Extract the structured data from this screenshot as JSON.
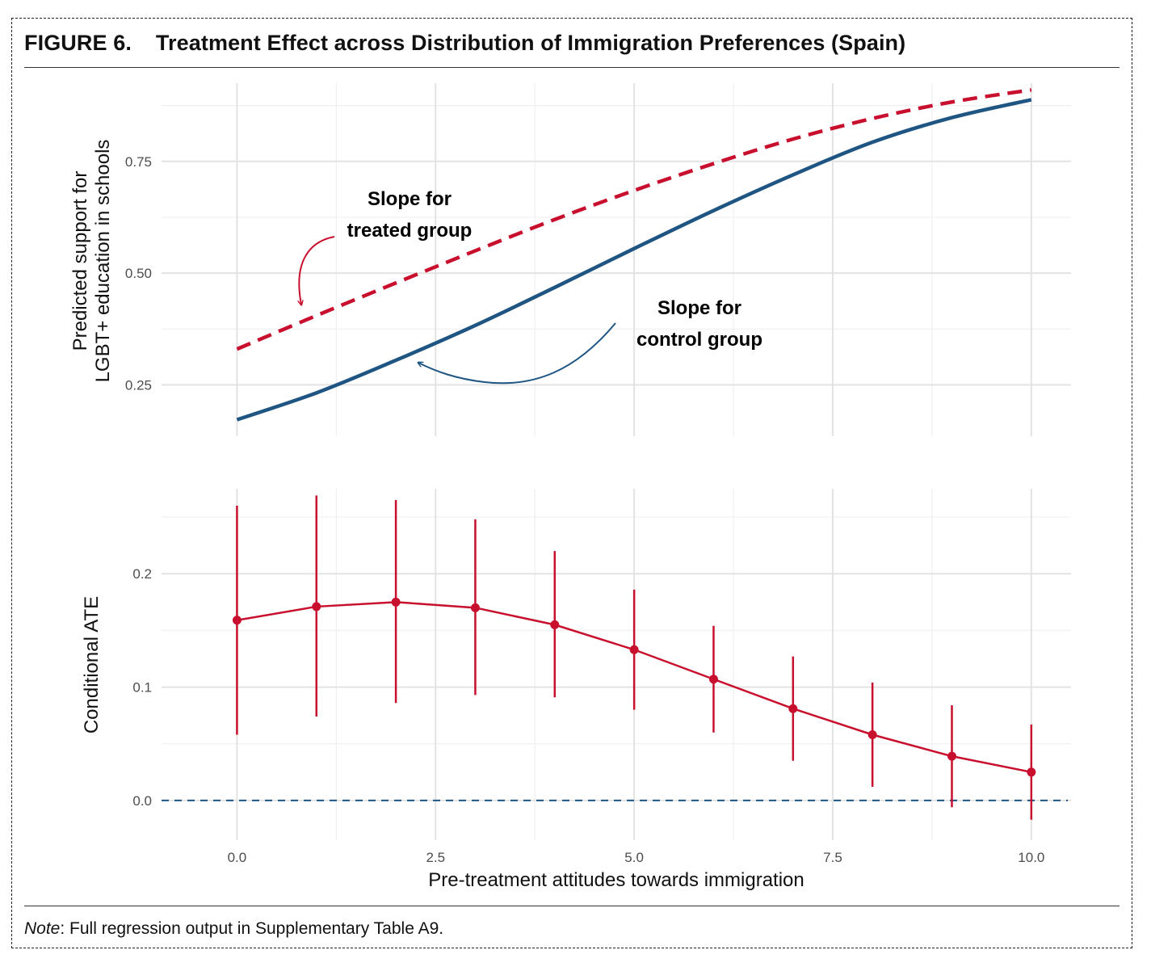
{
  "figure": {
    "label": "FIGURE 6.",
    "title": "Treatment Effect across Distribution of Immigration Preferences (Spain)",
    "note_label": "Note",
    "note_text": ": Full regression output in Supplementary Table A9."
  },
  "chart_data": [
    {
      "type": "line",
      "ylabel_line1": "Predicted support for",
      "ylabel_line2": "LGBT+ education in schools",
      "xlim": [
        -0.95,
        10.5
      ],
      "ylim": [
        0.135,
        0.925
      ],
      "yticks": [
        0.25,
        0.5,
        0.75
      ],
      "ytick_labels": [
        "0.25",
        "0.50",
        "0.75"
      ],
      "grid": true,
      "series": [
        {
          "key": "treated",
          "color": "#c8102e",
          "dash": "dashed",
          "x": [
            0,
            1,
            2,
            3,
            4,
            5,
            6,
            7,
            8,
            9,
            10
          ],
          "y": [
            0.33,
            0.405,
            0.478,
            0.55,
            0.62,
            0.685,
            0.745,
            0.8,
            0.846,
            0.883,
            0.91
          ]
        },
        {
          "key": "control",
          "color": "#1f5582",
          "dash": "solid",
          "x": [
            0,
            1,
            2,
            3,
            4,
            5,
            6,
            7,
            8,
            9,
            10
          ],
          "y": [
            0.172,
            0.232,
            0.305,
            0.383,
            0.468,
            0.555,
            0.64,
            0.72,
            0.793,
            0.848,
            0.888
          ]
        }
      ],
      "annotations": [
        {
          "key": "treated",
          "color": "#c8102e",
          "lines": [
            "Slope for",
            "treated group"
          ]
        },
        {
          "key": "control",
          "color": "#1f5582",
          "lines": [
            "Slope for",
            "control group"
          ]
        }
      ]
    },
    {
      "type": "line",
      "xlabel": "Pre-treatment attitudes towards immigration",
      "ylabel": "Conditional ATE",
      "xlim": [
        -0.95,
        10.5
      ],
      "ylim": [
        -0.035,
        0.275
      ],
      "xticks": [
        0,
        2.5,
        5,
        7.5,
        10
      ],
      "xtick_labels": [
        "0.0",
        "2.5",
        "5.0",
        "7.5",
        "10.0"
      ],
      "yticks": [
        0,
        0.1,
        0.2
      ],
      "ytick_labels": [
        "0.0",
        "0.1",
        "0.2"
      ],
      "grid": true,
      "reference_line": {
        "y": 0,
        "color": "#1f5582",
        "dash": "dashed"
      },
      "series": [
        {
          "key": "cate",
          "color": "#c8102e",
          "x": [
            0,
            1,
            2,
            3,
            4,
            5,
            6,
            7,
            8,
            9,
            10
          ],
          "y": [
            0.159,
            0.171,
            0.175,
            0.17,
            0.155,
            0.133,
            0.107,
            0.081,
            0.058,
            0.039,
            0.025
          ],
          "lower": [
            0.058,
            0.074,
            0.086,
            0.093,
            0.091,
            0.08,
            0.06,
            0.035,
            0.012,
            -0.006,
            -0.017
          ],
          "upper": [
            0.26,
            0.269,
            0.265,
            0.248,
            0.22,
            0.186,
            0.154,
            0.127,
            0.104,
            0.084,
            0.067
          ]
        }
      ]
    }
  ]
}
